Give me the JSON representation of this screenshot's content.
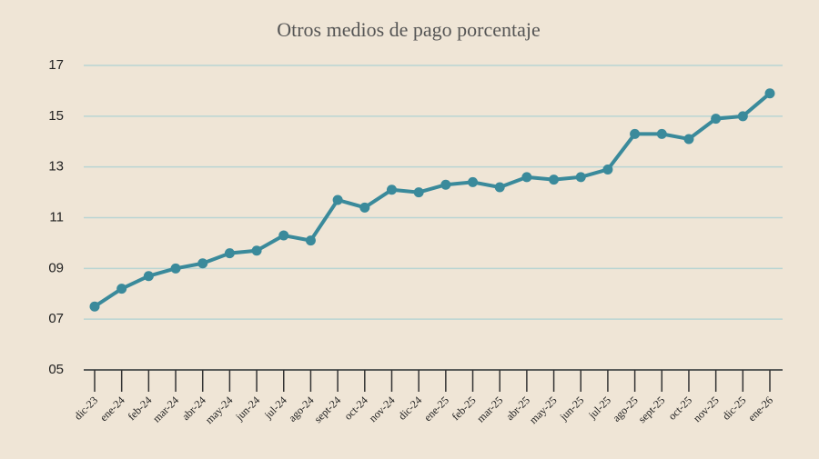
{
  "chart_data": {
    "type": "line",
    "title": "Otros medios de pago porcentaje",
    "categories": [
      "dic-23",
      "ene-24",
      "feb-24",
      "mar-24",
      "abr-24",
      "may-24",
      "jun-24",
      "jul-24",
      "ago-24",
      "sept-24",
      "oct-24",
      "nov-24",
      "dic-24",
      "ene-25",
      "feb-25",
      "mar-25",
      "abr-25",
      "may-25",
      "jun-25",
      "jul-25",
      "ago-25",
      "sept-25",
      "oct-25",
      "nov-25",
      "dic-25",
      "ene-26"
    ],
    "values": [
      7.5,
      8.2,
      8.7,
      9.0,
      9.2,
      9.6,
      9.7,
      10.3,
      10.1,
      11.7,
      11.4,
      12.1,
      12.0,
      12.3,
      12.4,
      12.2,
      12.6,
      12.5,
      12.6,
      12.9,
      14.3,
      14.3,
      14.1,
      14.9,
      15.0,
      15.9
    ],
    "color": "#3a8a9b",
    "ylim": [
      5,
      17
    ],
    "yticks": [
      {
        "value": 5,
        "label": "05"
      },
      {
        "value": 7,
        "label": "07"
      },
      {
        "value": 9,
        "label": "09"
      },
      11,
      13,
      15,
      17
    ],
    "grid": true
  }
}
